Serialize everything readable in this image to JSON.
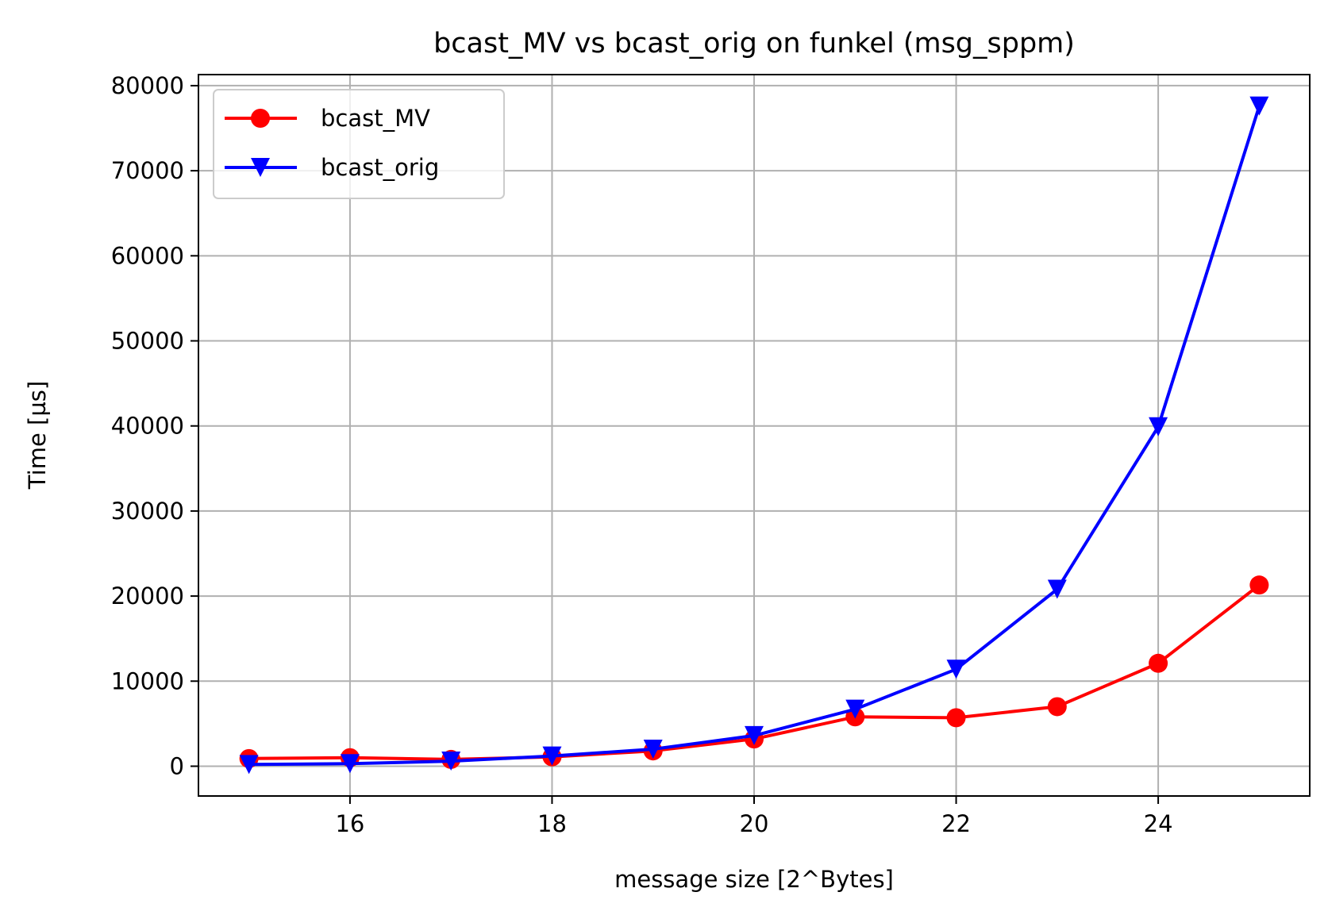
{
  "chart_data": {
    "type": "line",
    "title": "bcast_MV vs bcast_orig on funkel (msg_sppm)",
    "xlabel": "message size [2^Bytes]",
    "ylabel": "Time [µs]",
    "x": [
      15,
      16,
      17,
      18,
      19,
      20,
      21,
      22,
      23,
      24,
      25
    ],
    "xlim": [
      14.5,
      25.5
    ],
    "ylim": [
      -3500,
      81300
    ],
    "x_ticks": [
      "16",
      "18",
      "20",
      "22",
      "24"
    ],
    "y_ticks": [
      "0",
      "10000",
      "20000",
      "30000",
      "40000",
      "50000",
      "60000",
      "70000",
      "80000"
    ],
    "grid": true,
    "legend_position": "upper-left",
    "series": [
      {
        "name": "bcast_MV",
        "color": "#ff0000",
        "marker": "circle",
        "values": [
          900,
          1000,
          800,
          1100,
          1800,
          3200,
          5800,
          5700,
          7000,
          12100,
          21300
        ]
      },
      {
        "name": "bcast_orig",
        "color": "#0000ff",
        "marker": "triangle-down",
        "values": [
          200,
          300,
          600,
          1200,
          2000,
          3600,
          6700,
          11400,
          20800,
          39900,
          77600
        ]
      }
    ]
  }
}
